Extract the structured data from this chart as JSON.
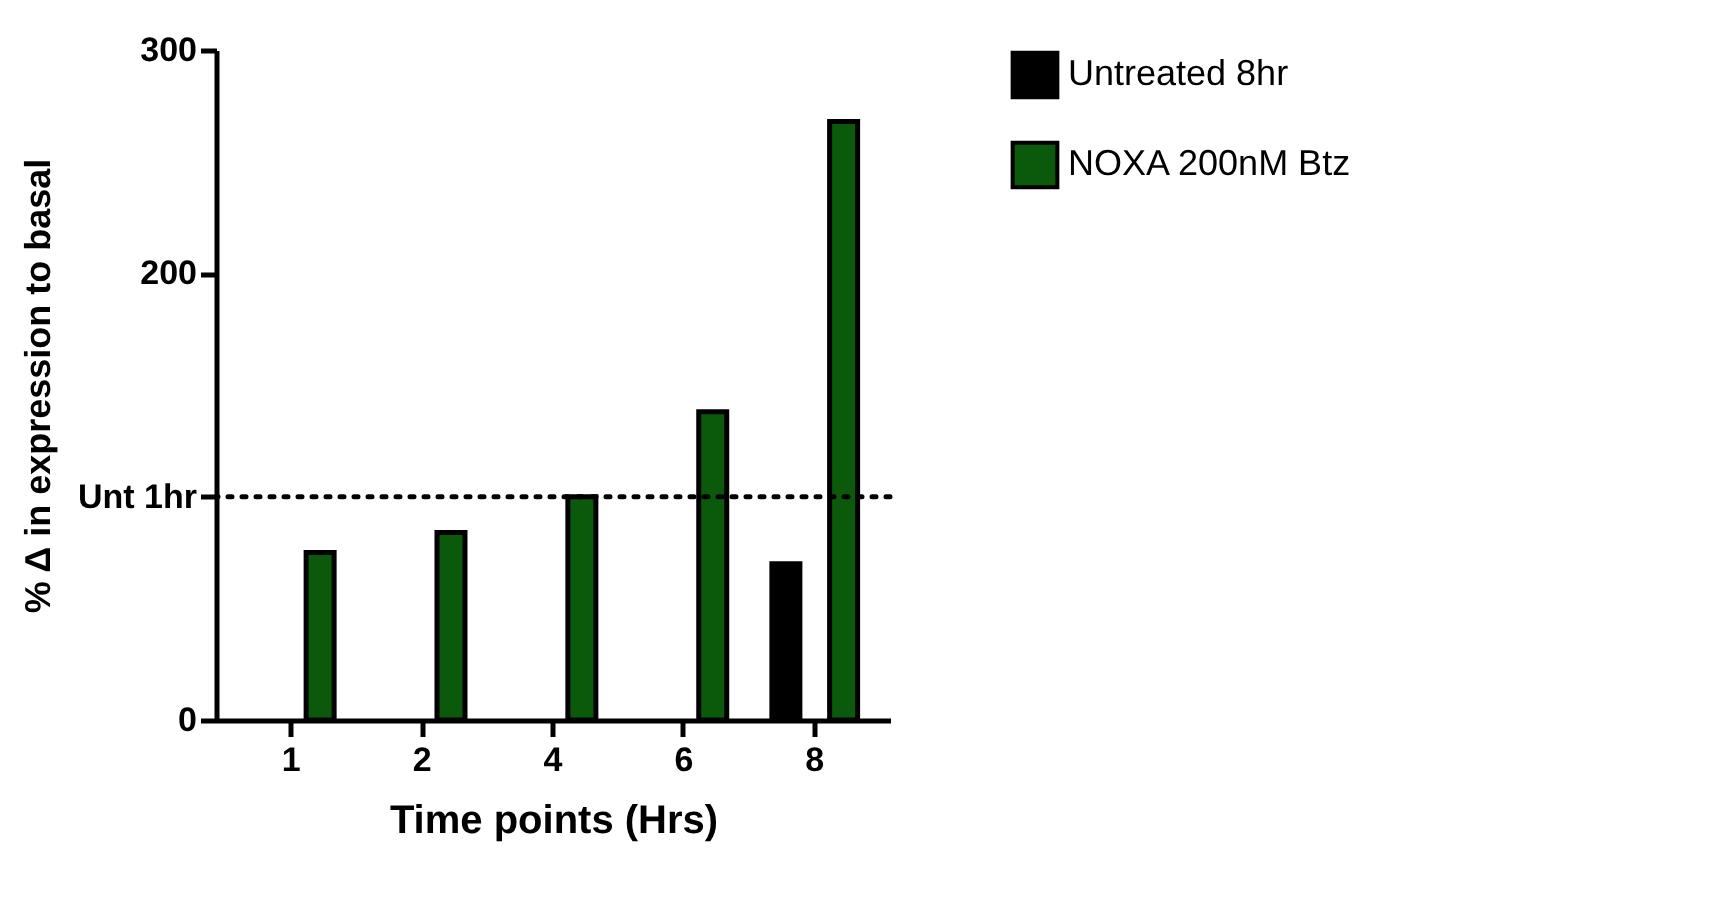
{
  "chart_data": {
    "type": "bar",
    "xlabel": "Time points (Hrs)",
    "ylabel": "% Δ in expression to basal",
    "categories": [
      "1",
      "2",
      "4",
      "6",
      "8"
    ],
    "series": [
      {
        "name": "Untreated 8hr",
        "color": "#000000",
        "values": [
          null,
          null,
          null,
          null,
          70
        ]
      },
      {
        "name": "NOXA 200nM Btz",
        "color": "#0b5a0b",
        "values": [
          75,
          84,
          100,
          138,
          268
        ]
      }
    ],
    "ylim": [
      0,
      300
    ],
    "yticks": [
      0,
      {
        "value": 100,
        "label": "Unt 1hr"
      },
      200,
      300
    ],
    "ref_lines": [
      {
        "axis": "y",
        "value": 100,
        "line_style": "dotted",
        "color": "#000000"
      }
    ],
    "grid": false,
    "legend": "right"
  }
}
